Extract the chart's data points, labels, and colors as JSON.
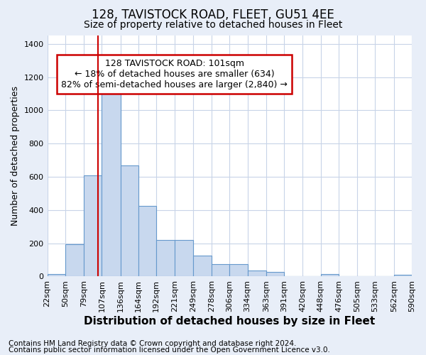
{
  "title": "128, TAVISTOCK ROAD, FLEET, GU51 4EE",
  "subtitle": "Size of property relative to detached houses in Fleet",
  "xlabel": "Distribution of detached houses by size in Fleet",
  "ylabel": "Number of detached properties",
  "footer_line1": "Contains HM Land Registry data © Crown copyright and database right 2024.",
  "footer_line2": "Contains public sector information licensed under the Open Government Licence v3.0.",
  "annotation_line1": "128 TAVISTOCK ROAD: 101sqm",
  "annotation_line2": "← 18% of detached houses are smaller (634)",
  "annotation_line3": "82% of semi-detached houses are larger (2,840) →",
  "bar_edges": [
    22,
    50,
    79,
    107,
    136,
    164,
    192,
    221,
    249,
    278,
    306,
    334,
    363,
    391,
    420,
    448,
    476,
    505,
    533,
    562,
    590
  ],
  "bar_heights": [
    15,
    195,
    610,
    1110,
    670,
    425,
    220,
    220,
    125,
    75,
    75,
    38,
    28,
    0,
    0,
    15,
    0,
    0,
    0,
    10
  ],
  "bar_color": "#c8d8ee",
  "bar_edge_color": "#6699cc",
  "marker_x": 101,
  "marker_color": "#cc0000",
  "ylim": [
    0,
    1450
  ],
  "xlim_left": 22,
  "xlim_right": 590,
  "outer_background": "#e8eef8",
  "plot_background": "#ffffff",
  "grid_color": "#c8d4e8",
  "annotation_box_color": "#cc0000",
  "title_fontsize": 12,
  "subtitle_fontsize": 10,
  "xlabel_fontsize": 11,
  "ylabel_fontsize": 9,
  "tick_fontsize": 8,
  "annotation_fontsize": 9,
  "footer_fontsize": 7.5
}
